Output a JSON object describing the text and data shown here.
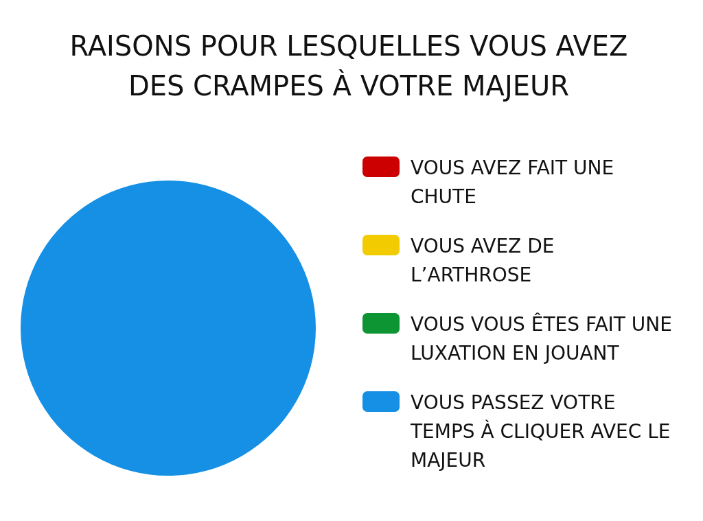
{
  "chart_data": {
    "type": "pie",
    "title": "RAISONS POUR LESQUELLES VOUS AVEZ DES CRAMPES À VOTRE MAJEUR",
    "categories": [
      "VOUS AVEZ FAIT UNE CHUTE",
      "VOUS AVEZ DE L’ARTHROSE",
      "VOUS VOUS ÊTES FAIT UNE LUXATION EN JOUANT",
      "VOUS PASSEZ VOTRE TEMPS À CLIQUER AVEC LE MAJEUR"
    ],
    "values": [
      0,
      0,
      0,
      100
    ],
    "colors": [
      "#cc0000",
      "#f2cc00",
      "#0d9433",
      "#1590e4"
    ],
    "legend": "right"
  }
}
